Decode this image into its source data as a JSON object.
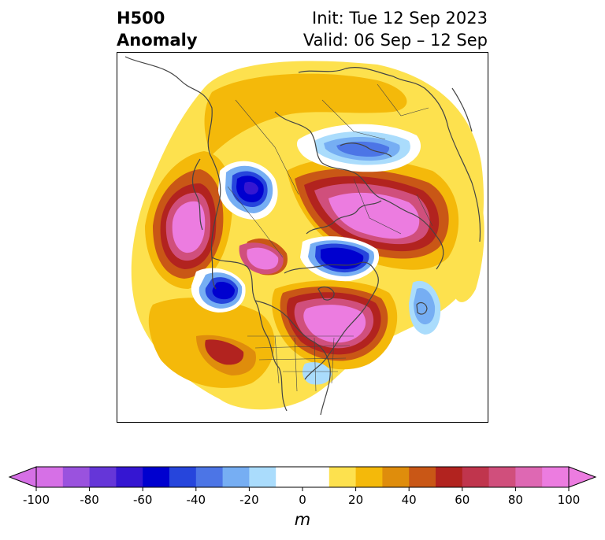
{
  "title": {
    "left_line1": "H500",
    "left_line2": "Anomaly",
    "init": "Init: Tue 12 Sep 2023",
    "valid": "Valid: 06 Sep – 12 Sep"
  },
  "map": {
    "projection": "polar-stereographic",
    "coastline_color": "#444444"
  },
  "colorbar": {
    "unit": "m",
    "extend": "both",
    "ticks": [
      "-100",
      "-80",
      "-60",
      "-40",
      "-20",
      "0",
      "20",
      "40",
      "60",
      "80",
      "100"
    ],
    "colors": [
      "#d670e6",
      "#9a52de",
      "#6536d8",
      "#3516d2",
      "#0000cf",
      "#2645dc",
      "#4c75e6",
      "#76aef3",
      "#aadcfc",
      "#ffffff",
      "#ffffff",
      "#fde14e",
      "#f4b90a",
      "#df8d0c",
      "#c95716",
      "#b2231f",
      "#c0354d",
      "#d04f7c",
      "#de68b3",
      "#ec7ce0"
    ],
    "lower_extend_color": "#d670e6",
    "upper_extend_color": "#ec7ce0"
  }
}
